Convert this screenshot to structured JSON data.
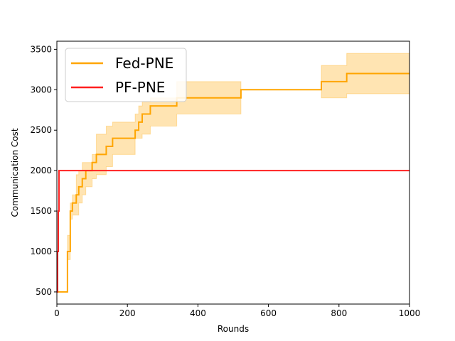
{
  "chart_data": {
    "type": "line",
    "title": "",
    "xlabel": "Rounds",
    "ylabel": "Communication Cost",
    "xlim": [
      0,
      1000
    ],
    "ylim": [
      350,
      3600
    ],
    "xticks": [
      0,
      200,
      400,
      600,
      800,
      1000
    ],
    "yticks": [
      500,
      1000,
      1500,
      2000,
      2500,
      3000,
      3500
    ],
    "grid": false,
    "legend_position": "top-left",
    "series": [
      {
        "name": "Fed-PNE",
        "color": "#ffa500",
        "style": "step",
        "x": [
          0,
          30,
          38,
          44,
          55,
          62,
          72,
          82,
          100,
          112,
          140,
          158,
          222,
          232,
          242,
          265,
          340,
          522,
          750,
          822,
          1000
        ],
        "y": [
          500,
          1000,
          1500,
          1600,
          1700,
          1800,
          1900,
          2000,
          2100,
          2200,
          2300,
          2400,
          2500,
          2600,
          2700,
          2800,
          2900,
          3000,
          3100,
          3200,
          3200
        ],
        "band_lower": [
          500,
          900,
          1400,
          1450,
          1450,
          1600,
          1700,
          1800,
          1900,
          1950,
          2050,
          2200,
          2400,
          2400,
          2450,
          2550,
          2700,
          3000,
          2900,
          2950,
          2950
        ],
        "band_upper": [
          500,
          1200,
          1600,
          1700,
          1950,
          2000,
          2100,
          2100,
          2200,
          2450,
          2550,
          2600,
          2700,
          2800,
          2850,
          2900,
          3100,
          3000,
          3300,
          3450,
          3450
        ]
      },
      {
        "name": "PF-PNE",
        "color": "#ff2020",
        "style": "step",
        "x": [
          0,
          2,
          4,
          6,
          1000
        ],
        "y": [
          500,
          1000,
          1500,
          2000,
          2000
        ]
      }
    ]
  }
}
